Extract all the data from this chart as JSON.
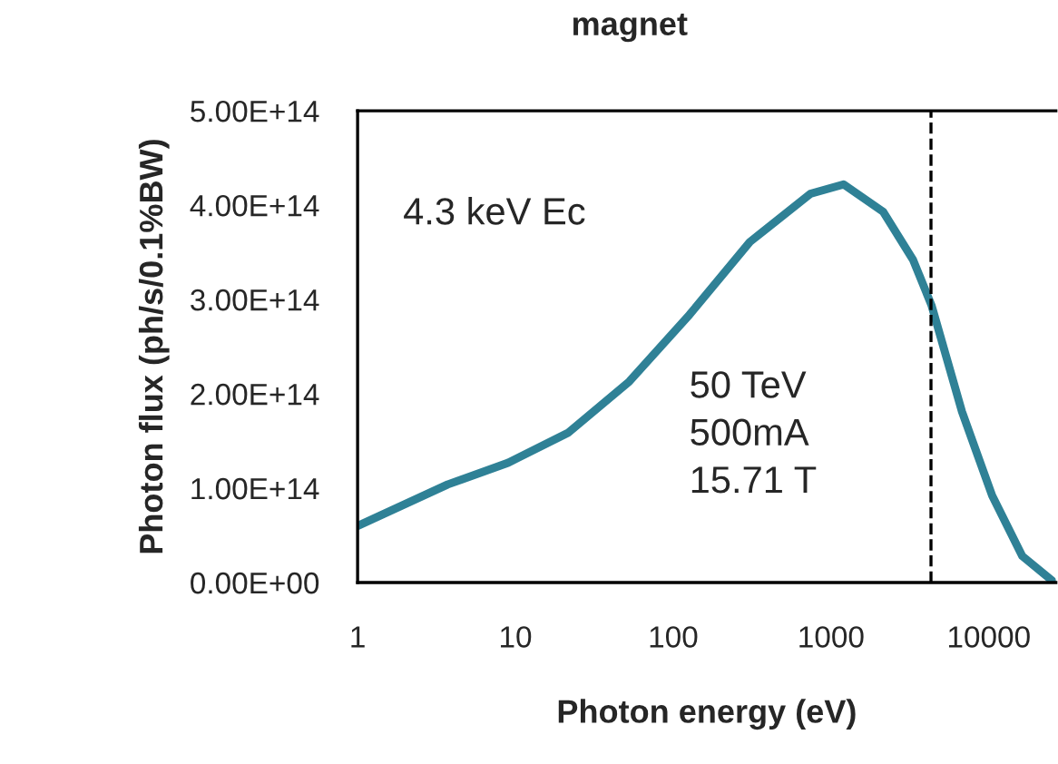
{
  "chart_data": {
    "type": "line",
    "title": "magnet",
    "xlabel": "Photon energy (eV)",
    "ylabel": "Photon flux (ph/s/0.1%BW)",
    "x": [
      1,
      3.73,
      9.0,
      21.7,
      52.6,
      127,
      306,
      741,
      1200,
      2140,
      3310,
      4330,
      6760,
      10500,
      16300,
      25200
    ],
    "series": [
      {
        "color": "#2f8196",
        "values": [
          60000000000000.0,
          104000000000000.0,
          127000000000000.0,
          159000000000000.0,
          213000000000000.0,
          284000000000000.0,
          361000000000000.0,
          412000000000000.0,
          422000000000000.0,
          393000000000000.0,
          342000000000000.0,
          294000000000000.0,
          181000000000000.0,
          92000000000000.0,
          28000000000000.0,
          2000000000000.0
        ]
      }
    ],
    "log": "x",
    "xlim": [
      1,
      26600
    ],
    "xticks": [
      1,
      10,
      100,
      1000,
      10000
    ],
    "ylim": [
      0,
      500000000000000.0
    ],
    "yticks": [
      {
        "value": 0,
        "label": "0.00E+00"
      },
      {
        "value": 100000000000000.0,
        "label": "1.00E+14"
      },
      {
        "value": 200000000000000.0,
        "label": "2.00E+14"
      },
      {
        "value": 300000000000000.0,
        "label": "3.00E+14"
      },
      {
        "value": 400000000000000.0,
        "label": "4.00E+14"
      },
      {
        "value": 500000000000000.0,
        "label": "5.00E+14"
      }
    ],
    "ref_lines": [
      {
        "axis": "x",
        "value": 4300,
        "color": "#000000",
        "line_style": "dashed"
      }
    ],
    "annotations": [
      "4.3 keV Ec",
      "50 TeV\n500mA\n15.71 T"
    ],
    "grid": false,
    "legend": false,
    "marker": "none",
    "line_style": "solid"
  }
}
